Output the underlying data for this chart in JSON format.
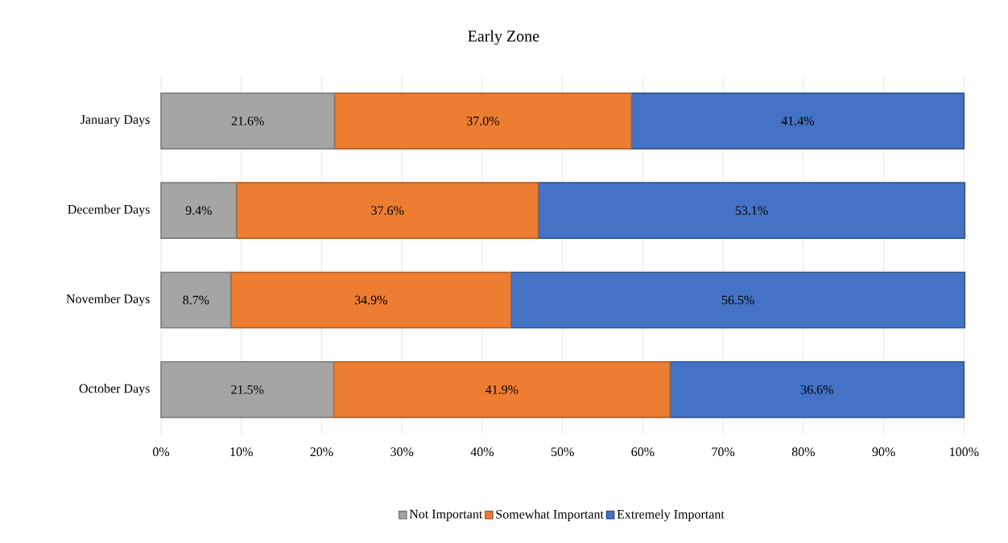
{
  "chart_data": {
    "type": "bar",
    "orientation": "horizontal",
    "stacked": true,
    "title": "Early Zone",
    "categories": [
      "January Days",
      "December Days",
      "November Days",
      "October Days"
    ],
    "series": [
      {
        "name": "Not Important",
        "color": "#a5a5a5",
        "values": [
          21.6,
          9.4,
          8.7,
          21.5
        ],
        "value_labels": [
          "21.6%",
          "9.4%",
          "8.7%",
          "21.5%"
        ]
      },
      {
        "name": "Somewhat Important",
        "color": "#ed7d31",
        "values": [
          37.0,
          37.6,
          34.9,
          41.9
        ],
        "value_labels": [
          "37.0%",
          "37.6%",
          "34.9%",
          "41.9%"
        ]
      },
      {
        "name": "Extremely Important",
        "color": "#4472c4",
        "values": [
          41.4,
          53.1,
          56.5,
          36.6
        ],
        "value_labels": [
          "41.4%",
          "53.1%",
          "56.5%",
          "36.6%"
        ]
      }
    ],
    "xlim": [
      0,
      100
    ],
    "xticks": [
      {
        "value": 0,
        "label": "0%"
      },
      {
        "value": 10,
        "label": "10%"
      },
      {
        "value": 20,
        "label": "20%"
      },
      {
        "value": 30,
        "label": "30%"
      },
      {
        "value": 40,
        "label": "40%"
      },
      {
        "value": 50,
        "label": "50%"
      },
      {
        "value": 60,
        "label": "60%"
      },
      {
        "value": 70,
        "label": "70%"
      },
      {
        "value": 80,
        "label": "80%"
      },
      {
        "value": 90,
        "label": "90%"
      },
      {
        "value": 100,
        "label": "100%"
      }
    ],
    "grid": "x",
    "legend": "bottom"
  }
}
